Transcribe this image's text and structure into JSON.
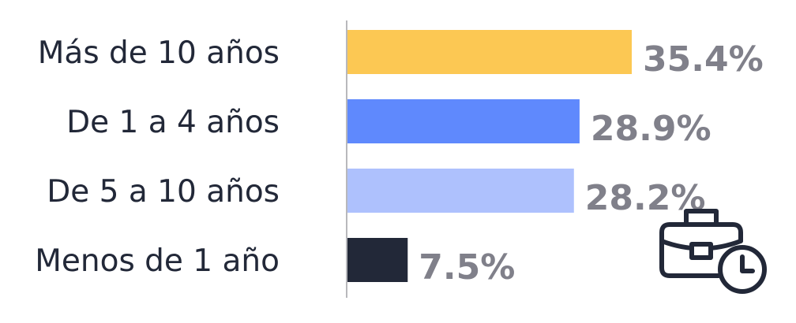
{
  "chart_data": {
    "type": "bar",
    "orientation": "horizontal",
    "categories": [
      "Más de 10 años",
      "De 1 a 4 años",
      "De 5 a 10 años",
      "Menos de 1 año"
    ],
    "values": [
      35.4,
      28.9,
      28.2,
      7.5
    ],
    "value_labels": [
      "35.4%",
      "28.9%",
      "28.2%",
      "7.5%"
    ],
    "bar_colors": [
      "#FCC853",
      "#5F89FD",
      "#AEC1FD",
      "#222838"
    ],
    "title": "",
    "xlabel": "",
    "ylabel": "",
    "grid": false,
    "legend": "none"
  },
  "icon": {
    "name": "briefcase-clock-icon",
    "color": "#222838"
  }
}
